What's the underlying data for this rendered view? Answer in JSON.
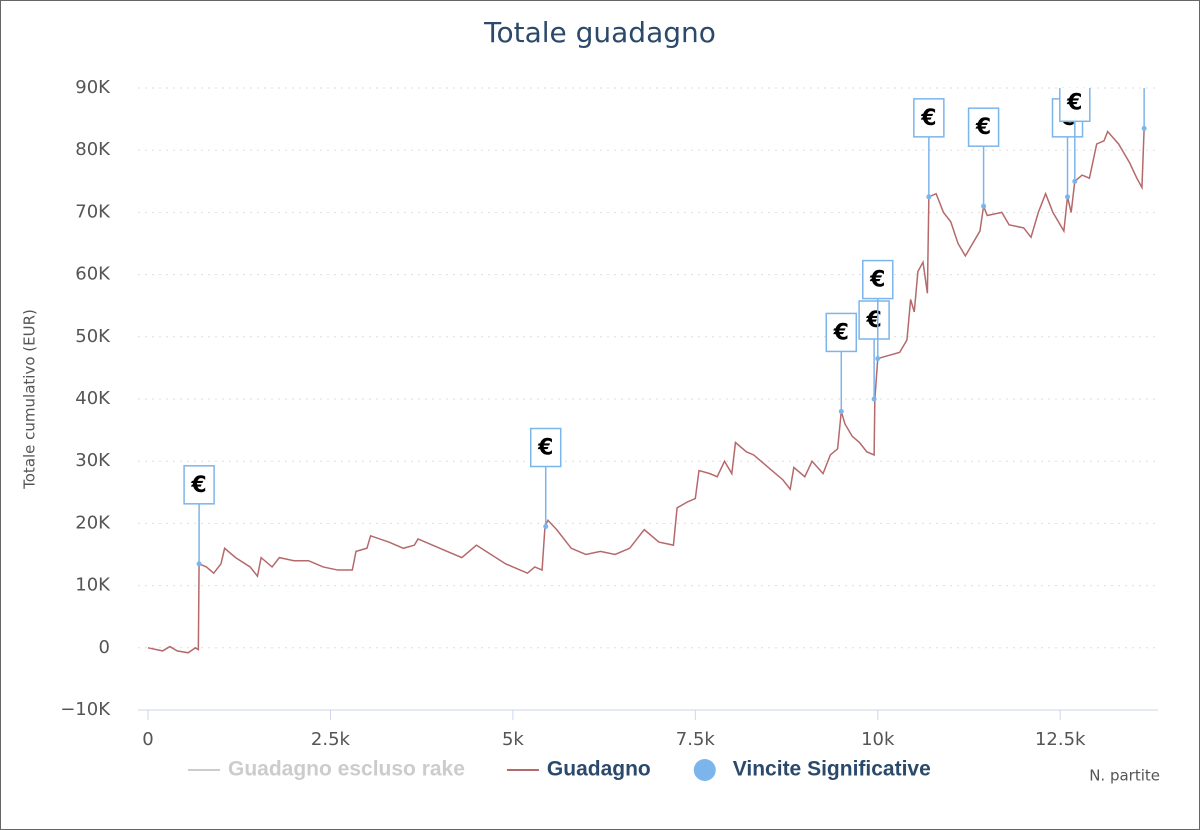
{
  "chart_data": {
    "type": "line",
    "title": "Totale guadagno",
    "y_label": "Totale cumulativo (EUR)",
    "x_label": "N. partite",
    "xlim": [
      0,
      13840
    ],
    "xticks": [
      0,
      {
        "value": 2500,
        "label": "2.5k"
      },
      {
        "value": 5000,
        "label": "5k"
      },
      {
        "value": 7500,
        "label": "7.5k"
      },
      {
        "value": 10000,
        "label": "10k"
      },
      {
        "value": 12500,
        "label": "12.5k"
      }
    ],
    "ylim": [
      -10000,
      90000
    ],
    "yticks": [
      {
        "value": -10000,
        "label": "−10K"
      },
      0,
      {
        "value": 10000,
        "label": "10K"
      },
      {
        "value": 20000,
        "label": "20K"
      },
      {
        "value": 30000,
        "label": "30K"
      },
      {
        "value": 40000,
        "label": "40K"
      },
      {
        "value": 50000,
        "label": "50K"
      },
      {
        "value": 60000,
        "label": "60K"
      },
      {
        "value": 70000,
        "label": "70K"
      },
      {
        "value": 80000,
        "label": "80K"
      },
      {
        "value": 90000,
        "label": "90K"
      }
    ],
    "grid": true,
    "flag_label": "€",
    "series": [
      {
        "name": "Guadagno escluso rake",
        "color": "#cccccc",
        "visible": false
      },
      {
        "name": "Guadagno",
        "color": "#b5696b",
        "type": "line",
        "x": [
          0,
          200,
          300,
          400,
          550,
          650,
          690,
          700,
          800,
          900,
          1000,
          1050,
          1200,
          1400,
          1500,
          1550,
          1700,
          1800,
          2000,
          2200,
          2400,
          2600,
          2800,
          2850,
          3000,
          3050,
          3300,
          3500,
          3650,
          3700,
          3900,
          4100,
          4300,
          4400,
          4500,
          4700,
          4900,
          5100,
          5200,
          5300,
          5400,
          5440,
          5480,
          5600,
          5800,
          6000,
          6200,
          6400,
          6600,
          6700,
          6800,
          7000,
          7200,
          7250,
          7400,
          7500,
          7550,
          7700,
          7800,
          7900,
          8000,
          8050,
          8200,
          8300,
          8500,
          8700,
          8800,
          8850,
          9000,
          9100,
          9250,
          9350,
          9450,
          9500,
          9550,
          9650,
          9750,
          9850,
          9950,
          9960,
          10000,
          10150,
          10300,
          10400,
          10450,
          10500,
          10550,
          10620,
          10680,
          10700,
          10800,
          10900,
          11000,
          11100,
          11200,
          11300,
          11400,
          11450,
          11500,
          11700,
          11800,
          12000,
          12100,
          12200,
          12300,
          12400,
          12550,
          12600,
          12650,
          12700,
          12800,
          12900,
          13000,
          13100,
          13150,
          13300,
          13450,
          13550,
          13620,
          13650
        ],
        "values": [
          0,
          -500,
          200,
          -500,
          -800,
          0,
          -300,
          13500,
          13000,
          12000,
          13500,
          16000,
          14500,
          13000,
          11500,
          14500,
          13000,
          14500,
          14000,
          14000,
          13000,
          12500,
          12500,
          15500,
          16000,
          18000,
          17000,
          16000,
          16500,
          17500,
          16500,
          15500,
          14500,
          15500,
          16500,
          15000,
          13500,
          12500,
          12000,
          13000,
          12500,
          19500,
          20500,
          19000,
          16000,
          15000,
          15500,
          15000,
          16000,
          17500,
          19000,
          17000,
          16500,
          22500,
          23500,
          24000,
          28500,
          28000,
          27500,
          30000,
          28000,
          33000,
          31500,
          31000,
          29000,
          27000,
          25500,
          29000,
          27500,
          30000,
          28000,
          31000,
          32000,
          38000,
          36000,
          34000,
          33000,
          31500,
          31000,
          40000,
          46500,
          47000,
          47500,
          49500,
          56000,
          54000,
          60500,
          62000,
          57000,
          72500,
          73000,
          70000,
          68500,
          65000,
          63000,
          65000,
          67000,
          71000,
          69500,
          70000,
          68000,
          67500,
          66000,
          70000,
          73000,
          70000,
          67000,
          72500,
          70000,
          75000,
          76000,
          75500,
          81000,
          81500,
          83000,
          81000,
          78000,
          75500,
          74000,
          83500
        ]
      },
      {
        "name": "Vincite Significative",
        "color": "#7cb5ec",
        "type": "scatter",
        "x": [
          700,
          5450,
          9500,
          9950,
          10000,
          10700,
          11450,
          12600,
          12700,
          13650
        ],
        "values": [
          13500,
          19500,
          38000,
          40000,
          46500,
          72500,
          71000,
          72500,
          75000,
          83500
        ]
      }
    ]
  }
}
